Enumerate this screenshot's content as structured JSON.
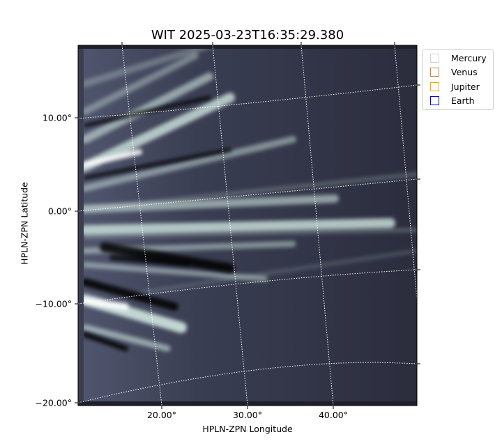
{
  "chart_data": {
    "type": "heatmap",
    "title": "WIT 2025-03-23T16:35:29.380",
    "xlabel": "HPLN-ZPN Longitude",
    "ylabel": "HPLN-ZPN Latitude",
    "xticks": [
      "20.00°",
      "30.00°",
      "40.00°"
    ],
    "yticks": [
      "10.00°",
      "0.00°",
      "−10.00°",
      "−20.00°"
    ],
    "colormap": "bone",
    "grid": true,
    "legend_position": "upper-right-outside",
    "legend": [
      {
        "name": "Mercury",
        "color": "#d3d3d3"
      },
      {
        "name": "Venus",
        "color": "#cd7f3f"
      },
      {
        "name": "Jupiter",
        "color": "#ffa500"
      },
      {
        "name": "Earth",
        "color": "#0000ff"
      }
    ]
  }
}
